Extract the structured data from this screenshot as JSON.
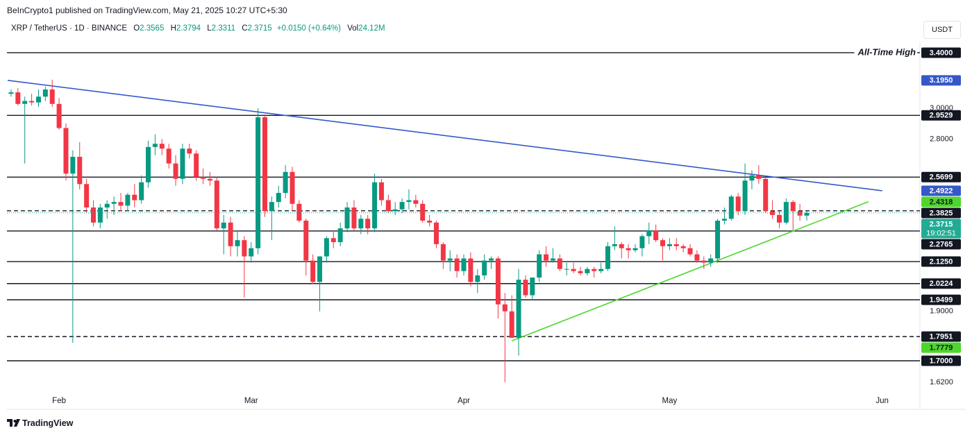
{
  "header": {
    "published": "BeInCrypto1 published on TradingView.com, May 21, 2025 10:27 UTC+5:30",
    "symbol": "XRP / TetherUS · 1D · BINANCE",
    "legend": [
      {
        "key": "O",
        "value": 2.3565
      },
      {
        "key": "H",
        "value": 2.3794
      },
      {
        "key": "L",
        "value": 2.3311
      },
      {
        "key": "C",
        "value": 2.3715
      }
    ],
    "change": "+0.0150 (+0.64%)",
    "volume_key": "Vol",
    "volume": "24.12M"
  },
  "currency": "USDT",
  "footer": "TradingView",
  "chart_data": {
    "type": "candlestick",
    "log_scale": true,
    "grid": false,
    "up_color": "#089981",
    "down_color": "#f23645",
    "ylim": [
      1.524,
      3.653
    ],
    "yticks": [
      {
        "value": 1.62,
        "label": "1.6200"
      },
      {
        "value": 1.9,
        "label": "1.9000"
      },
      {
        "value": 2.8,
        "label": "2.8000"
      },
      {
        "value": 3,
        "label": "3.0000"
      }
    ],
    "categories": [
      null,
      null,
      null,
      null,
      null,
      null,
      null,
      "Feb",
      null,
      null,
      null,
      null,
      null,
      null,
      null,
      null,
      null,
      null,
      null,
      null,
      null,
      null,
      null,
      null,
      null,
      null,
      null,
      null,
      null,
      null,
      null,
      null,
      null,
      null,
      null,
      "Mar",
      null,
      null,
      null,
      null,
      null,
      null,
      null,
      null,
      null,
      null,
      null,
      null,
      null,
      null,
      null,
      null,
      null,
      null,
      null,
      null,
      null,
      null,
      null,
      null,
      null,
      null,
      null,
      null,
      null,
      null,
      "Apr",
      null,
      null,
      null,
      null,
      null,
      null,
      null,
      null,
      null,
      null,
      null,
      null,
      null,
      null,
      null,
      null,
      null,
      null,
      null,
      null,
      null,
      null,
      null,
      null,
      null,
      null,
      null,
      null,
      null,
      "May",
      null,
      null,
      null,
      null,
      null,
      null,
      null,
      null,
      null,
      null,
      null,
      null,
      null,
      null,
      null,
      null,
      null,
      null,
      null,
      null,
      null,
      null,
      null,
      null,
      null,
      null,
      null,
      null,
      null,
      null,
      "Jun",
      null,
      null,
      null,
      null,
      null
    ],
    "open": [
      3.1,
      3.11,
      3.03,
      3.05,
      3.04,
      3.08,
      3.13,
      3.03,
      2.87,
      2.59,
      2.69,
      2.53,
      2.4,
      2.32,
      2.4,
      2.42,
      2.43,
      2.41,
      2.47,
      2.44,
      2.54,
      2.75,
      2.77,
      2.74,
      2.65,
      2.56,
      2.74,
      2.71,
      2.57,
      2.56,
      2.55,
      2.29,
      2.32,
      2.2,
      2.23,
      2.15,
      2.19,
      2.94,
      2.38,
      2.43,
      2.48,
      2.6,
      2.42,
      2.33,
      2.13,
      2.03,
      2.15,
      2.24,
      2.22,
      2.29,
      2.4,
      2.29,
      2.34,
      2.29,
      2.54,
      2.44,
      2.38,
      2.39,
      2.43,
      2.44,
      2.42,
      2.33,
      2.32,
      2.21,
      2.13,
      2.14,
      2.08,
      2.14,
      2.03,
      2.06,
      2.13,
      2.14,
      1.93,
      1.9,
      1.79,
      2.04,
      1.97,
      2.05,
      2.16,
      2.13,
      2.14,
      2.09,
      2.09,
      2.08,
      2.07,
      2.09,
      2.08,
      2.09,
      2.2,
      2.21,
      2.19,
      2.18,
      2.19,
      2.25,
      2.28,
      2.23,
      2.2,
      2.21,
      2.2,
      2.19,
      2.16,
      2.13,
      2.12,
      2.14,
      2.33,
      2.34,
      2.46,
      2.38,
      2.55,
      2.58,
      2.56,
      2.38,
      2.36,
      2.32,
      2.43,
      2.38,
      2.3565,
      null,
      null,
      null,
      null,
      null,
      null,
      null,
      null,
      null,
      null,
      null,
      null,
      null,
      null,
      null,
      null
    ],
    "high": [
      3.13,
      3.14,
      3.08,
      3.1,
      3.13,
      3.15,
      3.2,
      3.07,
      2.9,
      2.73,
      2.78,
      2.56,
      2.44,
      2.42,
      2.44,
      2.46,
      2.48,
      2.48,
      2.53,
      2.58,
      2.79,
      2.83,
      2.8,
      2.77,
      2.7,
      2.77,
      2.77,
      2.73,
      2.62,
      2.6,
      2.57,
      2.36,
      2.35,
      2.28,
      2.25,
      2.22,
      3.0,
      2.96,
      2.46,
      2.52,
      2.64,
      2.63,
      2.44,
      2.34,
      2.16,
      2.15,
      2.25,
      2.28,
      2.32,
      2.43,
      2.44,
      2.36,
      2.36,
      2.59,
      2.56,
      2.47,
      2.43,
      2.45,
      2.5,
      2.47,
      2.44,
      2.36,
      2.33,
      2.22,
      2.18,
      2.16,
      2.16,
      2.17,
      2.09,
      2.16,
      2.15,
      2.15,
      1.98,
      1.97,
      2.09,
      2.06,
      2.05,
      2.18,
      2.2,
      2.19,
      2.16,
      2.12,
      2.12,
      2.1,
      2.1,
      2.1,
      2.12,
      2.22,
      2.3,
      2.22,
      2.21,
      2.21,
      2.26,
      2.32,
      2.31,
      2.24,
      2.24,
      2.24,
      2.21,
      2.21,
      2.18,
      2.15,
      2.16,
      2.34,
      2.4,
      2.47,
      2.48,
      2.65,
      2.61,
      2.64,
      2.57,
      2.44,
      2.38,
      2.45,
      2.44,
      2.42,
      2.3794,
      null,
      null,
      null,
      null,
      null,
      null,
      null,
      null,
      null,
      null,
      null,
      null,
      null,
      null,
      null,
      null
    ],
    "low": [
      3.08,
      3.02,
      2.65,
      3.02,
      3.01,
      3.05,
      3.01,
      2.86,
      2.55,
      1.77,
      2.5,
      2.37,
      2.3,
      2.29,
      2.34,
      2.36,
      2.38,
      2.38,
      2.4,
      2.42,
      2.51,
      2.7,
      2.7,
      2.62,
      2.52,
      2.53,
      2.68,
      2.55,
      2.53,
      2.52,
      2.28,
      2.16,
      2.15,
      2.15,
      1.96,
      2.12,
      2.16,
      2.35,
      2.23,
      2.4,
      2.45,
      2.38,
      2.32,
      2.06,
      2.02,
      1.9,
      2.12,
      2.19,
      2.2,
      2.27,
      2.28,
      2.26,
      2.26,
      2.27,
      2.41,
      2.37,
      2.36,
      2.37,
      2.39,
      2.4,
      2.32,
      2.3,
      2.19,
      2.09,
      2.08,
      2.05,
      2.06,
      2.01,
      1.98,
      2.04,
      2.09,
      1.87,
      1.62,
      1.79,
      1.72,
      1.96,
      1.95,
      2.03,
      2.1,
      2.12,
      2.08,
      2.06,
      2.07,
      2.06,
      2.06,
      2.05,
      2.07,
      2.08,
      2.18,
      2.14,
      2.14,
      2.17,
      2.15,
      2.21,
      2.22,
      2.13,
      2.18,
      2.18,
      2.17,
      2.15,
      2.12,
      2.09,
      2.1,
      2.12,
      2.31,
      2.33,
      2.36,
      2.36,
      2.5,
      2.53,
      2.37,
      2.34,
      2.29,
      2.31,
      2.28,
      2.33,
      2.3311,
      null,
      null,
      null,
      null,
      null,
      null,
      null,
      null,
      null,
      null,
      null,
      null,
      null,
      null,
      null,
      null
    ],
    "close": [
      3.11,
      3.03,
      3.05,
      3.04,
      3.08,
      3.13,
      3.03,
      2.87,
      2.59,
      2.69,
      2.53,
      2.4,
      2.32,
      2.4,
      2.42,
      2.43,
      2.41,
      2.47,
      2.44,
      2.54,
      2.75,
      2.77,
      2.74,
      2.65,
      2.56,
      2.74,
      2.71,
      2.57,
      2.56,
      2.55,
      2.29,
      2.32,
      2.2,
      2.23,
      2.15,
      2.19,
      2.94,
      2.38,
      2.43,
      2.48,
      2.6,
      2.42,
      2.33,
      2.13,
      2.03,
      2.15,
      2.24,
      2.22,
      2.29,
      2.4,
      2.29,
      2.34,
      2.29,
      2.54,
      2.44,
      2.38,
      2.39,
      2.43,
      2.44,
      2.42,
      2.33,
      2.32,
      2.21,
      2.13,
      2.14,
      2.08,
      2.14,
      2.03,
      2.06,
      2.13,
      2.14,
      1.93,
      1.9,
      1.79,
      2.04,
      1.97,
      2.05,
      2.16,
      2.13,
      2.14,
      2.09,
      2.09,
      2.08,
      2.07,
      2.09,
      2.08,
      2.09,
      2.2,
      2.21,
      2.19,
      2.18,
      2.19,
      2.25,
      2.28,
      2.23,
      2.2,
      2.21,
      2.2,
      2.19,
      2.16,
      2.13,
      2.12,
      2.14,
      2.33,
      2.34,
      2.46,
      2.38,
      2.55,
      2.58,
      2.56,
      2.38,
      2.36,
      2.32,
      2.43,
      2.38,
      2.3565,
      2.3715,
      null,
      null,
      null,
      null,
      null,
      null,
      null,
      null,
      null,
      null,
      null,
      null,
      null,
      null,
      null,
      null
    ],
    "level_color": "#131722",
    "levels": [
      {
        "price": {
          "value": 3.4,
          "label": "3.4000"
        },
        "dashed": false,
        "note": "All-Time High"
      },
      {
        "price": 2.9529,
        "dashed": false
      },
      {
        "price": 2.5699,
        "dashed": false
      },
      {
        "price": 2.3825,
        "dashed": true
      },
      {
        "price": 2.2765,
        "dashed": false
      },
      {
        "price": {
          "value": 2.125,
          "label": "2.1250"
        },
        "dashed": false
      },
      {
        "price": 2.0224,
        "dashed": false
      },
      {
        "price": 1.9499,
        "dashed": false
      },
      {
        "price": 1.7951,
        "dashed": true
      },
      {
        "price": {
          "value": 1.7,
          "label": "1.7000"
        },
        "dashed": false
      }
    ],
    "trendlines": [
      {
        "color": "#3558c9",
        "label_text_color": "#ffffff",
        "values": [
          {
            "value": 3.195,
            "label": "3.1950"
          },
          2.4922
        ]
      },
      {
        "color": "#4fd62c",
        "label_text_color": "#131722",
        "values": [
          1.7779,
          2.4318
        ]
      }
    ],
    "last": {
      "price": 2.3715,
      "countdown": "19:02:51",
      "color": "#22ab94"
    }
  }
}
